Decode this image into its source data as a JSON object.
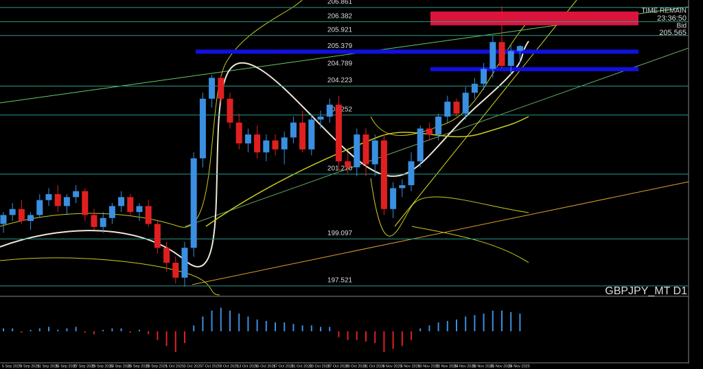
{
  "chart_data": {
    "type": "candlestick",
    "symbol": "GBPJPY_MT D1",
    "info": [
      "TIME REMAIN",
      "23:36:50",
      "Bid",
      "205.565"
    ],
    "ylim": [
      197.22,
      207.11
    ],
    "levels": [
      206.861,
      206.382,
      205.921,
      205.379,
      204.789,
      204.223,
      203.252,
      201.27,
      199.097,
      197.521
    ],
    "level_labels": [
      "206.861",
      "206.382",
      "205.921",
      "205.379",
      "204.789",
      "204.223",
      "203.252",
      "201.270",
      "199.097",
      "197.521"
    ],
    "zones": [
      {
        "color": "#dc143c",
        "from": 206.4,
        "to": 206.861
      }
    ],
    "categories": [
      "5 Sep 2025",
      null,
      "9 Sep 2025",
      null,
      "11 Sep 2025",
      null,
      "15 Sep 2025",
      null,
      "17 Sep 2025",
      null,
      "19 Sep 2025",
      null,
      "23 Sep 2025",
      null,
      "25 Sep 2025",
      null,
      "29 Sep 2025",
      null,
      "1 Oct 2025",
      null,
      "3 Oct 2025",
      null,
      "7 Oct 2025",
      null,
      "9 Oct 2025",
      null,
      "13 Oct 2025",
      null,
      "15 Oct 2025",
      null,
      "17 Oct 2025",
      null,
      "21 Oct 2025",
      null,
      "23 Oct 2025",
      null,
      "27 Oct 2025",
      null,
      "29 Oct 2025",
      null,
      "31 Oct 2025",
      null,
      "4 Nov 2025",
      null,
      "6 Nov 2025",
      null,
      "10 Nov 2025",
      null,
      "12 Nov 2025",
      null,
      "14 Nov 2025",
      null,
      "18 Nov 2025",
      null,
      "20 Nov 2025",
      null,
      "24 Nov 2025",
      null
    ],
    "up_color": "#3a8fe0",
    "down_color": "#e02020",
    "open": [
      199.6,
      199.9,
      200.1,
      199.7,
      199.9,
      200.4,
      200.6,
      200.2,
      200.5,
      200.7,
      199.9,
      199.5,
      199.8,
      200.2,
      200.5,
      200.0,
      200.2,
      199.6,
      198.8,
      198.3,
      197.8,
      198.8,
      201.8,
      203.8,
      204.5,
      203.8,
      203.0,
      202.3,
      202.6,
      202.0,
      202.4,
      202.1,
      202.5,
      203.0,
      202.1,
      203.1,
      203.2,
      203.6,
      201.7,
      201.5,
      202.6,
      201.6,
      202.4,
      200.1,
      200.8,
      200.9,
      201.7,
      202.8,
      202.6,
      203.2,
      203.7,
      203.3,
      204.0,
      204.3,
      204.8,
      205.7,
      204.9,
      205.4
    ],
    "high": [
      200.0,
      200.3,
      200.4,
      200.0,
      200.6,
      200.8,
      200.9,
      200.6,
      200.9,
      200.8,
      200.1,
      200.0,
      200.3,
      200.7,
      200.6,
      200.3,
      200.4,
      199.7,
      199.0,
      198.5,
      199.0,
      202.0,
      204.0,
      204.6,
      204.6,
      204.0,
      203.3,
      202.8,
      202.9,
      202.6,
      202.6,
      202.7,
      203.2,
      203.4,
      203.3,
      203.4,
      203.8,
      203.9,
      202.0,
      202.8,
      202.8,
      202.6,
      202.6,
      201.0,
      201.1,
      202.0,
      202.9,
      203.0,
      203.3,
      203.9,
      203.8,
      204.2,
      204.5,
      205.0,
      205.9,
      206.9,
      205.6,
      205.6
    ],
    "low": [
      199.3,
      199.7,
      199.6,
      199.4,
      199.8,
      200.2,
      200.0,
      199.9,
      200.3,
      199.7,
      199.4,
      199.3,
      199.6,
      200.0,
      199.9,
      199.7,
      199.5,
      198.6,
      198.0,
      197.6,
      197.5,
      198.5,
      201.5,
      203.5,
      203.6,
      202.8,
      202.1,
      202.0,
      201.8,
      201.7,
      201.9,
      201.6,
      202.3,
      202.0,
      201.9,
      202.8,
      203.0,
      201.4,
      201.3,
      201.2,
      201.2,
      201.2,
      199.9,
      199.8,
      200.5,
      200.7,
      201.5,
      202.4,
      202.4,
      203.0,
      203.2,
      203.1,
      203.8,
      204.1,
      204.5,
      204.8,
      204.6,
      205.0
    ],
    "close": [
      199.9,
      200.1,
      199.7,
      199.9,
      200.4,
      200.6,
      200.2,
      200.5,
      200.7,
      199.9,
      199.5,
      199.8,
      200.2,
      200.5,
      200.0,
      200.2,
      199.6,
      198.8,
      198.3,
      197.8,
      198.8,
      201.8,
      203.8,
      204.5,
      203.8,
      203.0,
      202.3,
      202.6,
      202.0,
      202.4,
      202.1,
      202.5,
      203.0,
      202.1,
      203.1,
      203.2,
      203.6,
      201.7,
      201.5,
      202.6,
      201.6,
      202.4,
      200.1,
      200.8,
      200.9,
      201.7,
      202.8,
      202.6,
      203.2,
      203.7,
      203.3,
      204.0,
      204.3,
      204.8,
      205.7,
      204.9,
      205.4,
      205.565
    ],
    "macd": {
      "ylim": [
        -1,
        1
      ],
      "values": [
        0.1,
        0.1,
        -0.05,
        0.05,
        0.1,
        0.15,
        0.05,
        0.1,
        0.15,
        -0.05,
        -0.1,
        0.05,
        0.1,
        0.1,
        -0.05,
        0.05,
        -0.1,
        -0.3,
        -0.5,
        -0.7,
        -0.4,
        0.2,
        0.5,
        0.7,
        0.8,
        0.7,
        0.6,
        0.5,
        0.4,
        0.35,
        0.3,
        0.3,
        0.25,
        0.2,
        0.2,
        0.15,
        0.15,
        -0.2,
        -0.3,
        -0.3,
        -0.35,
        -0.4,
        -0.7,
        -0.6,
        -0.5,
        -0.3,
        0.1,
        0.2,
        0.3,
        0.35,
        0.4,
        0.5,
        0.55,
        0.6,
        0.7,
        0.7,
        0.65,
        0.6
      ]
    }
  }
}
